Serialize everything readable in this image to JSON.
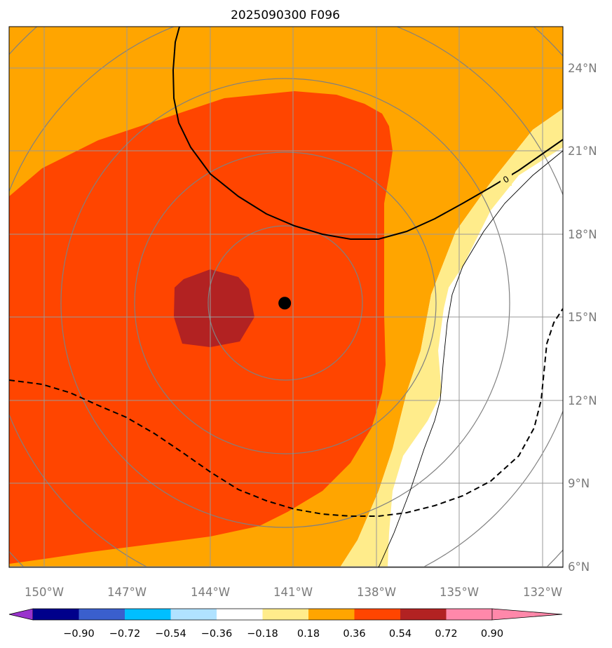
{
  "map": {
    "title": "2025090300 F096",
    "longitude_labels": [
      "150°W",
      "147°W",
      "144°W",
      "141°W",
      "138°W",
      "135°W",
      "132°W"
    ],
    "latitude_labels": [
      "24°N",
      "21°N",
      "18°N",
      "15°N",
      "12°N",
      "9°N",
      "6°N"
    ],
    "contour_zero_label": "0",
    "center_marker": {
      "lon": -141.3,
      "lat": 15.5
    }
  },
  "colorbar": {
    "tick_labels": [
      "−0.90",
      "−0.72",
      "−0.54",
      "−0.36",
      "−0.18",
      "0.18",
      "0.36",
      "0.54",
      "0.72",
      "0.90"
    ],
    "colors": [
      "#9933cc",
      "#00008b",
      "#3a5fcd",
      "#00bfff",
      "#b0e2ff",
      "#ffffff",
      "#ffec8b",
      "#ffa500",
      "#ff4500",
      "#b22222",
      "#ff88aa"
    ]
  },
  "fill_colors": {
    "level_0_36": "#ffec8b",
    "level_0_54": "#ffa500",
    "level_0_72": "#ff4500",
    "level_0_90": "#b22222",
    "grid": "#999999",
    "circles": "#808080",
    "contour": "#000000"
  }
}
